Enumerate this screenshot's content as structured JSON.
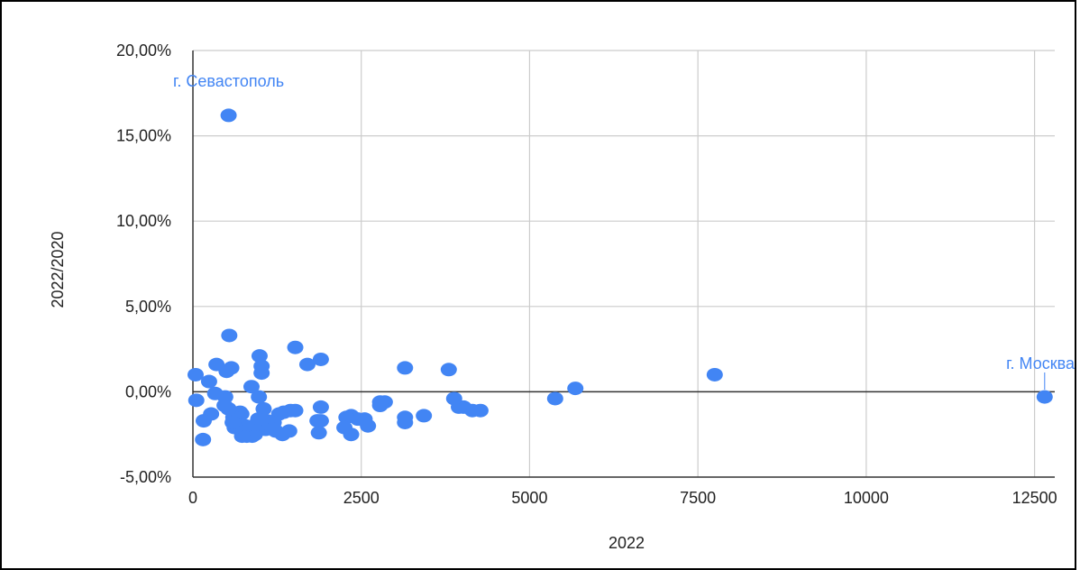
{
  "chart_data": {
    "type": "scatter",
    "xlabel": "2022",
    "ylabel": "2022/2020",
    "xlim": [
      0,
      12800
    ],
    "ylim": [
      -5,
      20
    ],
    "x_ticks": [
      0,
      2500,
      5000,
      7500,
      10000,
      12500
    ],
    "x_tick_labels": [
      "0",
      "2500",
      "5000",
      "7500",
      "10000",
      "12500"
    ],
    "y_ticks": [
      -5,
      0,
      5,
      10,
      15,
      20
    ],
    "y_tick_labels": [
      "-5,00%",
      "0,00%",
      "5,00%",
      "10,00%",
      "15,00%",
      "20,00%"
    ],
    "grid": true,
    "legend": "none",
    "point_color": "#4285f4",
    "annotations": [
      {
        "text": "г. Севастополь",
        "x": 530,
        "y": 16.2
      },
      {
        "text": "г. Москва",
        "x": 12650,
        "y": -0.3
      }
    ],
    "points": [
      {
        "x": 530,
        "y": 16.2
      },
      {
        "x": 12650,
        "y": -0.3
      },
      {
        "x": 7750,
        "y": 1.0
      },
      {
        "x": 5680,
        "y": 0.2
      },
      {
        "x": 5380,
        "y": -0.4
      },
      {
        "x": 4270,
        "y": -1.1
      },
      {
        "x": 4150,
        "y": -1.1
      },
      {
        "x": 4020,
        "y": -0.9
      },
      {
        "x": 3950,
        "y": -0.9
      },
      {
        "x": 3880,
        "y": -0.4
      },
      {
        "x": 3800,
        "y": 1.3
      },
      {
        "x": 3430,
        "y": -1.4
      },
      {
        "x": 3150,
        "y": 1.4
      },
      {
        "x": 3150,
        "y": -1.5
      },
      {
        "x": 3150,
        "y": -1.8
      },
      {
        "x": 2850,
        "y": -0.6
      },
      {
        "x": 2780,
        "y": -0.6
      },
      {
        "x": 2780,
        "y": -0.8
      },
      {
        "x": 2600,
        "y": -2.0
      },
      {
        "x": 2550,
        "y": -1.6
      },
      {
        "x": 2450,
        "y": -1.6
      },
      {
        "x": 2350,
        "y": -1.4
      },
      {
        "x": 2350,
        "y": -2.5
      },
      {
        "x": 2280,
        "y": -1.5
      },
      {
        "x": 2250,
        "y": -2.1
      },
      {
        "x": 1900,
        "y": 1.9
      },
      {
        "x": 1900,
        "y": -0.9
      },
      {
        "x": 1900,
        "y": -1.7
      },
      {
        "x": 1850,
        "y": -1.7
      },
      {
        "x": 1870,
        "y": -2.4
      },
      {
        "x": 1700,
        "y": 1.6
      },
      {
        "x": 1520,
        "y": 2.6
      },
      {
        "x": 1520,
        "y": -1.1
      },
      {
        "x": 1450,
        "y": -1.1
      },
      {
        "x": 1430,
        "y": -2.3
      },
      {
        "x": 1350,
        "y": -1.2
      },
      {
        "x": 1330,
        "y": -2.5
      },
      {
        "x": 1280,
        "y": -1.3
      },
      {
        "x": 1230,
        "y": -2.3
      },
      {
        "x": 1200,
        "y": -1.8
      },
      {
        "x": 1150,
        "y": -2.1
      },
      {
        "x": 1100,
        "y": -1.7
      },
      {
        "x": 1080,
        "y": -2.2
      },
      {
        "x": 1050,
        "y": -1.0
      },
      {
        "x": 1020,
        "y": 1.5
      },
      {
        "x": 1020,
        "y": 1.1
      },
      {
        "x": 1000,
        "y": -1.9
      },
      {
        "x": 990,
        "y": 2.1
      },
      {
        "x": 980,
        "y": -0.3
      },
      {
        "x": 970,
        "y": -1.6
      },
      {
        "x": 950,
        "y": -2.3
      },
      {
        "x": 920,
        "y": -2.5
      },
      {
        "x": 900,
        "y": -2.0
      },
      {
        "x": 880,
        "y": -2.6
      },
      {
        "x": 870,
        "y": 0.3
      },
      {
        "x": 830,
        "y": -2.2
      },
      {
        "x": 800,
        "y": -2.6
      },
      {
        "x": 780,
        "y": -2.0
      },
      {
        "x": 730,
        "y": -2.6
      },
      {
        "x": 720,
        "y": -1.3
      },
      {
        "x": 700,
        "y": -1.2
      },
      {
        "x": 660,
        "y": -1.9
      },
      {
        "x": 650,
        "y": -1.3
      },
      {
        "x": 620,
        "y": -2.1
      },
      {
        "x": 600,
        "y": -1.5
      },
      {
        "x": 590,
        "y": -1.8
      },
      {
        "x": 570,
        "y": 1.4
      },
      {
        "x": 540,
        "y": 3.3
      },
      {
        "x": 530,
        "y": -1.0
      },
      {
        "x": 500,
        "y": 1.2
      },
      {
        "x": 480,
        "y": -0.3
      },
      {
        "x": 470,
        "y": -0.8
      },
      {
        "x": 350,
        "y": 1.6
      },
      {
        "x": 330,
        "y": -0.1
      },
      {
        "x": 270,
        "y": -1.3
      },
      {
        "x": 240,
        "y": 0.6
      },
      {
        "x": 160,
        "y": -1.7
      },
      {
        "x": 150,
        "y": -2.8
      },
      {
        "x": 50,
        "y": -0.5
      },
      {
        "x": 40,
        "y": 1.0
      }
    ]
  }
}
